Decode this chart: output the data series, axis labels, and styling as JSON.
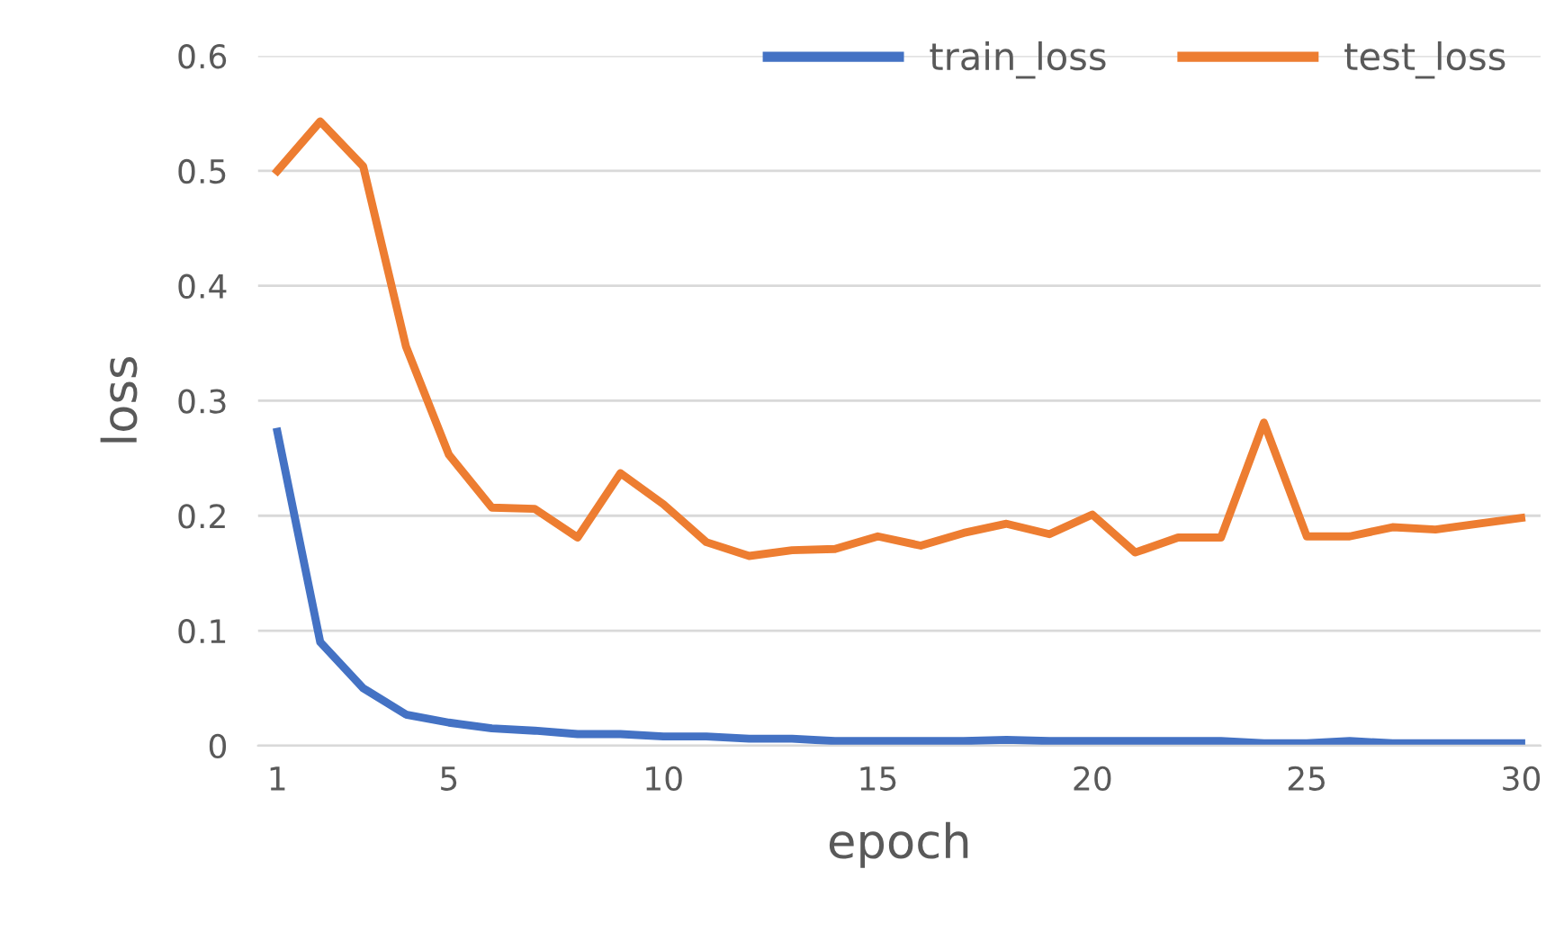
{
  "chart_data": {
    "type": "line",
    "xlabel": "epoch",
    "ylabel": "loss",
    "x": [
      1,
      2,
      3,
      4,
      5,
      6,
      7,
      8,
      9,
      10,
      11,
      12,
      13,
      14,
      15,
      16,
      17,
      18,
      19,
      20,
      21,
      22,
      23,
      24,
      25,
      26,
      27,
      28,
      29,
      30
    ],
    "series": [
      {
        "name": "train_loss",
        "color": "#4472c4",
        "values": [
          0.273,
          0.09,
          0.05,
          0.027,
          0.02,
          0.015,
          0.013,
          0.01,
          0.01,
          0.008,
          0.008,
          0.006,
          0.006,
          0.004,
          0.004,
          0.004,
          0.004,
          0.005,
          0.004,
          0.004,
          0.004,
          0.004,
          0.004,
          0.002,
          0.002,
          0.004,
          0.002,
          0.002,
          0.002,
          0.002
        ]
      },
      {
        "name": "test_loss",
        "color": "#ed7d31",
        "values": [
          0.5,
          0.543,
          0.504,
          0.347,
          0.253,
          0.207,
          0.206,
          0.181,
          0.237,
          0.21,
          0.177,
          0.165,
          0.17,
          0.171,
          0.182,
          0.174,
          0.185,
          0.193,
          0.184,
          0.201,
          0.168,
          0.181,
          0.181,
          0.281,
          0.182,
          0.182,
          0.19,
          0.188,
          0.193,
          0.198
        ]
      }
    ],
    "xlim": [
      0.55,
      30.45
    ],
    "xticks": [
      1,
      5,
      10,
      15,
      20,
      25,
      30
    ],
    "ylim": [
      0,
      0.6
    ],
    "yticks": [
      0,
      0.1,
      0.2,
      0.3,
      0.4,
      0.5,
      0.6
    ],
    "grid": "y",
    "legend": "top right",
    "marker": "none",
    "line_style": "solid"
  }
}
